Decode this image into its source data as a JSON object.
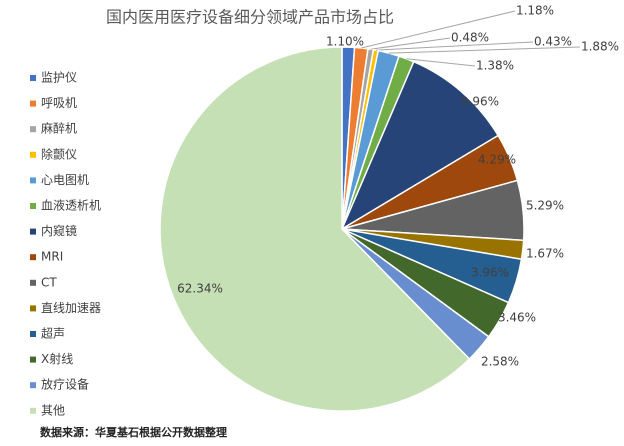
{
  "chart_data": {
    "type": "pie",
    "title": "国内医用医疗设备细分领域产品市场占比",
    "categories": [
      "监护仪",
      "呼吸机",
      "麻醉机",
      "除颤仪",
      "心电图机",
      "血液透析机",
      "内窥镜",
      "MRI",
      "CT",
      "直线加速器",
      "超声",
      "X射线",
      "放疗设备",
      "其他"
    ],
    "values": [
      1.1,
      1.18,
      0.48,
      0.43,
      1.88,
      1.38,
      9.96,
      4.29,
      5.29,
      1.67,
      3.96,
      3.46,
      2.58,
      62.34
    ],
    "value_labels": [
      "1.10%",
      "1.18%",
      "0.48%",
      "0.43%",
      "1.88%",
      "1.38%",
      "9.96%",
      "4.29%",
      "5.29%",
      "1.67%",
      "3.96%",
      "3.46%",
      "2.58%",
      "62.34%"
    ],
    "colors": [
      "#4472c4",
      "#ed7d31",
      "#a5a5a5",
      "#ffc000",
      "#5b9bd5",
      "#70ad47",
      "#264478",
      "#9e480e",
      "#636363",
      "#997300",
      "#255e91",
      "#43682b",
      "#698ed0",
      "#c5e0b4"
    ],
    "legend": "left",
    "source": "数据来源：华夏基石根据公开数据整理"
  }
}
